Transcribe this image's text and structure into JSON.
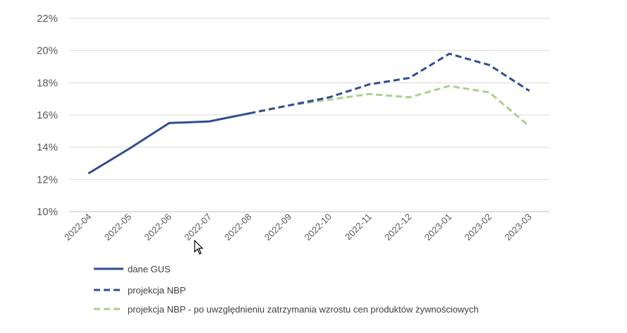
{
  "chart_data": {
    "type": "line",
    "categories": [
      "2022-04",
      "2022-05",
      "2022-06",
      "2022-07",
      "2022-08",
      "2022-09",
      "2022-10",
      "2022-11",
      "2022-12",
      "2023-01",
      "2023-02",
      "2023-03"
    ],
    "y_ticks": [
      "10%",
      "12%",
      "14%",
      "16%",
      "18%",
      "20%",
      "22%"
    ],
    "ylim": [
      10,
      22
    ],
    "grid": true,
    "legend_position": "bottom-left",
    "series": [
      {
        "name": "dane GUS",
        "style": "solid",
        "color": "#2F4F8F",
        "values": [
          12.4,
          13.9,
          15.5,
          15.6,
          16.1,
          null,
          null,
          null,
          null,
          null,
          null,
          null
        ]
      },
      {
        "name": "projekcja NBP",
        "style": "dashed",
        "color": "#2F4F8F",
        "values": [
          null,
          null,
          null,
          null,
          16.1,
          16.6,
          17.1,
          17.9,
          18.3,
          19.8,
          19.1,
          17.5
        ]
      },
      {
        "name": "projekcja NBP - po uwzględnieniu zatrzymania wzrostu cen produktów żywnościowych",
        "style": "dashed",
        "color": "#A9D18E",
        "values": [
          null,
          null,
          null,
          null,
          16.1,
          16.6,
          16.95,
          17.3,
          17.1,
          17.8,
          17.4,
          15.3
        ]
      }
    ]
  },
  "cursor": {
    "icon": "mouse-pointer-icon"
  }
}
